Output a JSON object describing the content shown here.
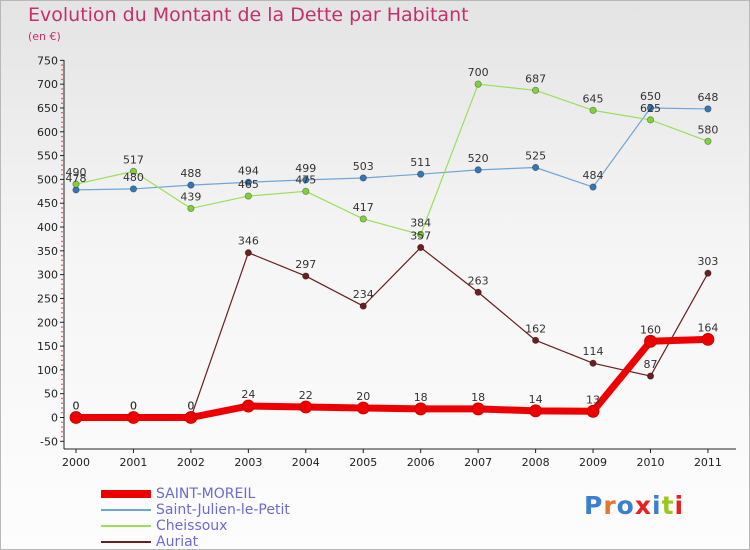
{
  "header": {
    "title": "Evolution du Montant de la Dette par Habitant",
    "subtitle": "(en €)"
  },
  "logo": {
    "text": "Proxiti",
    "colors": [
      "#3a7fd0",
      "#e8732a",
      "#3a7fd0",
      "#e82020",
      "#3a7fd0",
      "#9bc71e",
      "#e82020"
    ]
  },
  "chart_data": {
    "type": "line",
    "title": "Evolution du Montant de la Dette par Habitant",
    "subtitle": "(en €)",
    "xlabel": "",
    "ylabel": "",
    "categories": [
      "2000",
      "2001",
      "2002",
      "2003",
      "2004",
      "2005",
      "2006",
      "2007",
      "2008",
      "2009",
      "2010",
      "2011"
    ],
    "ylim": [
      -50,
      750
    ],
    "yticks": [
      -50,
      0,
      50,
      100,
      150,
      200,
      250,
      300,
      350,
      400,
      450,
      500,
      550,
      600,
      650,
      700,
      750
    ],
    "grid": false,
    "legend_position": "bottom-left",
    "series": [
      {
        "name": "Saint-Julien-le-Petit",
        "color": "#6fa6d6",
        "point_color": "#3377b8",
        "width": 1.2,
        "values": [
          478,
          480,
          488,
          494,
          499,
          503,
          511,
          520,
          525,
          484,
          650,
          648
        ]
      },
      {
        "name": "Cheissoux",
        "color": "#99e05a",
        "point_color": "#7fd23a",
        "width": 1.2,
        "values": [
          490,
          517,
          439,
          465,
          475,
          417,
          384,
          700,
          687,
          645,
          625,
          580
        ]
      },
      {
        "name": "Auriat",
        "color": "#6b1f1f",
        "point_color": "#6b1f1f",
        "width": 1.2,
        "values": [
          0,
          0,
          0,
          346,
          297,
          234,
          357,
          263,
          162,
          114,
          87,
          303
        ]
      },
      {
        "name": "SAINT-MOREIL",
        "color": "#ee0000",
        "point_color": "#ee0000",
        "width": 7,
        "values": [
          0,
          0,
          0,
          24,
          22,
          20,
          18,
          18,
          14,
          13,
          160,
          164
        ]
      }
    ]
  }
}
